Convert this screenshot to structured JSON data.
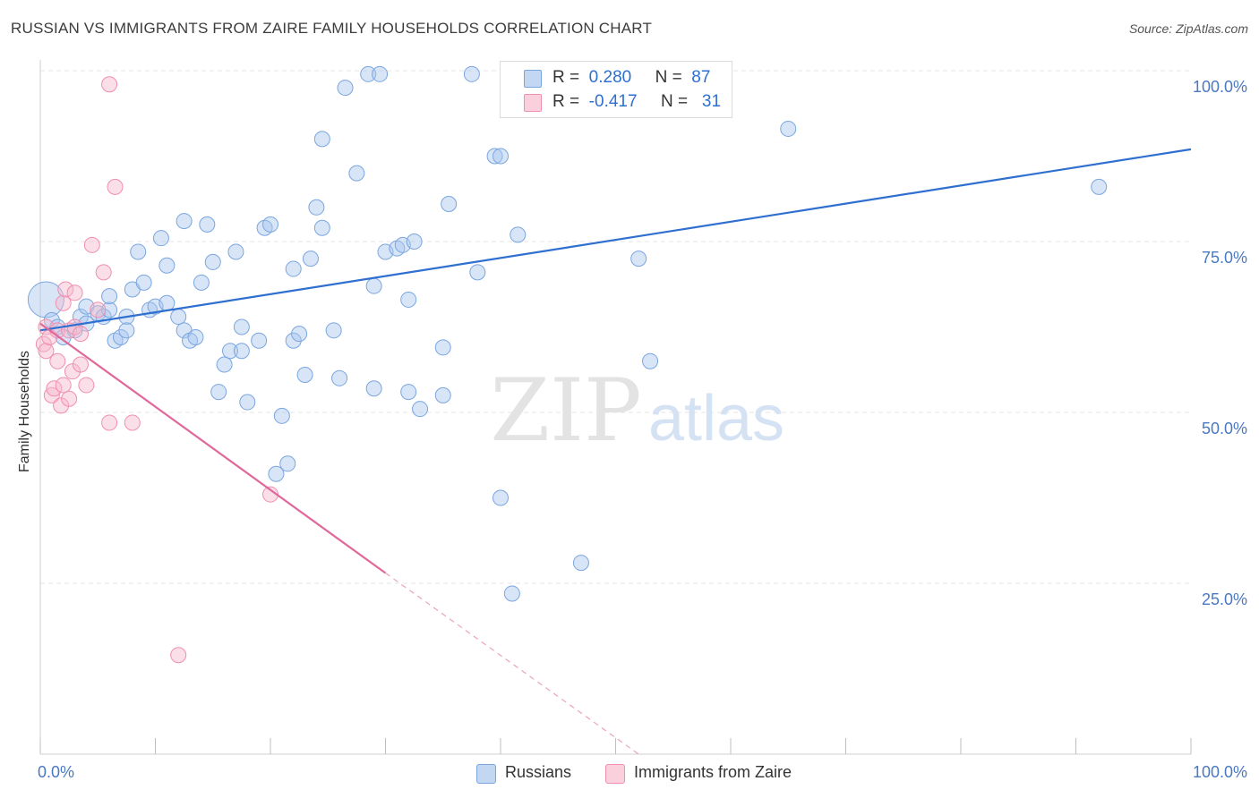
{
  "header": {
    "title": "RUSSIAN VS IMMIGRANTS FROM ZAIRE FAMILY HOUSEHOLDS CORRELATION CHART",
    "source": "Source: ZipAtlas.com"
  },
  "watermark": {
    "zip": "ZIP",
    "atlas": "atlas"
  },
  "stats": {
    "rows": [
      {
        "r_label": "R =",
        "r_value": "0.280",
        "n_label": "N =",
        "n_value": "87",
        "color": "#a9c6ee"
      },
      {
        "r_label": "R =",
        "r_value": "-0.417",
        "n_label": "N =",
        "n_value": "31",
        "color": "#f6b8cb"
      }
    ]
  },
  "chart_data": {
    "type": "scatter",
    "title": "RUSSIAN VS IMMIGRANTS FROM ZAIRE FAMILY HOUSEHOLDS CORRELATION CHART",
    "xlabel": "",
    "ylabel": "Family Households",
    "xlim": [
      0,
      100
    ],
    "ylim": [
      0,
      100
    ],
    "x_tick_labels": [
      {
        "value": 0,
        "label": "0.0%"
      },
      {
        "value": 100,
        "label": "100.0%"
      }
    ],
    "y_tick_labels": [
      {
        "value": 25,
        "label": "25.0%"
      },
      {
        "value": 50,
        "label": "50.0%"
      },
      {
        "value": 75,
        "label": "75.0%"
      },
      {
        "value": 100,
        "label": "100.0%"
      }
    ],
    "grid": true,
    "legend": "bottom",
    "series": [
      {
        "name": "Russians",
        "color": "#7aa6e0",
        "trend": {
          "x": [
            0,
            100
          ],
          "y": [
            62,
            88.5
          ]
        },
        "points": [
          [
            0.5,
            66.5
          ],
          [
            1,
            63.5
          ],
          [
            1.5,
            62.5
          ],
          [
            2,
            61
          ],
          [
            3,
            62
          ],
          [
            3.5,
            64
          ],
          [
            4,
            63
          ],
          [
            4,
            65.5
          ],
          [
            5,
            64.5
          ],
          [
            5.5,
            64
          ],
          [
            6,
            65
          ],
          [
            6,
            67
          ],
          [
            6.5,
            60.5
          ],
          [
            7,
            61
          ],
          [
            7.5,
            64
          ],
          [
            7.5,
            62
          ],
          [
            8,
            68
          ],
          [
            8.5,
            73.5
          ],
          [
            9,
            69
          ],
          [
            9.5,
            65
          ],
          [
            10,
            65.5
          ],
          [
            10.5,
            75.5
          ],
          [
            11,
            66
          ],
          [
            11,
            71.5
          ],
          [
            12,
            64
          ],
          [
            12.5,
            62
          ],
          [
            12.5,
            78
          ],
          [
            13,
            60.5
          ],
          [
            13.5,
            61
          ],
          [
            14,
            69
          ],
          [
            14.5,
            77.5
          ],
          [
            15,
            72
          ],
          [
            15.5,
            53
          ],
          [
            16,
            57
          ],
          [
            16.5,
            59
          ],
          [
            17,
            73.5
          ],
          [
            17.5,
            59
          ],
          [
            17.5,
            62.5
          ],
          [
            18,
            51.5
          ],
          [
            19,
            60.5
          ],
          [
            19.5,
            77
          ],
          [
            20,
            77.5
          ],
          [
            20.5,
            41
          ],
          [
            21,
            49.5
          ],
          [
            21.5,
            42.5
          ],
          [
            22,
            60.5
          ],
          [
            22,
            71
          ],
          [
            22.5,
            61.5
          ],
          [
            23,
            55.5
          ],
          [
            23.5,
            72.5
          ],
          [
            24,
            80
          ],
          [
            24.5,
            90
          ],
          [
            24.5,
            77
          ],
          [
            25.5,
            62
          ],
          [
            26,
            55
          ],
          [
            26.5,
            97.5
          ],
          [
            27.5,
            85
          ],
          [
            28.5,
            99.5
          ],
          [
            29,
            53.5
          ],
          [
            29,
            68.5
          ],
          [
            29.5,
            99.5
          ],
          [
            30,
            73.5
          ],
          [
            31,
            74
          ],
          [
            31.5,
            74.5
          ],
          [
            32,
            53
          ],
          [
            32,
            66.5
          ],
          [
            32.5,
            75
          ],
          [
            33,
            50.5
          ],
          [
            35,
            59.5
          ],
          [
            35,
            52.5
          ],
          [
            35.5,
            80.5
          ],
          [
            37.5,
            99.5
          ],
          [
            38,
            70.5
          ],
          [
            39.5,
            87.5
          ],
          [
            40,
            87.5
          ],
          [
            40,
            37.5
          ],
          [
            41,
            23.5
          ],
          [
            41.5,
            76
          ],
          [
            47,
            28
          ],
          [
            50,
            99.5
          ],
          [
            50.5,
            99
          ],
          [
            51,
            99
          ],
          [
            52,
            72.5
          ],
          [
            53,
            57.5
          ],
          [
            65,
            91.5
          ],
          [
            92,
            83
          ]
        ]
      },
      {
        "name": "Immigrants from Zaire",
        "color": "#f08fb0",
        "trend": {
          "x": [
            0,
            30
          ],
          "y": [
            63,
            26.5
          ]
        },
        "trend_dashed": {
          "x": [
            30,
            52
          ],
          "y": [
            26.5,
            0
          ]
        },
        "points": [
          [
            0.3,
            60
          ],
          [
            0.5,
            59
          ],
          [
            0.5,
            62.5
          ],
          [
            0.8,
            61
          ],
          [
            1,
            52.5
          ],
          [
            1.2,
            53.5
          ],
          [
            1.5,
            57.5
          ],
          [
            1.5,
            62
          ],
          [
            1.8,
            51
          ],
          [
            2,
            54
          ],
          [
            2,
            66
          ],
          [
            2.2,
            68
          ],
          [
            2.5,
            52
          ],
          [
            2.5,
            62
          ],
          [
            2.8,
            56
          ],
          [
            3,
            62.5
          ],
          [
            3,
            67.5
          ],
          [
            3.5,
            57
          ],
          [
            3.5,
            61.5
          ],
          [
            4,
            54
          ],
          [
            4.5,
            74.5
          ],
          [
            5,
            65
          ],
          [
            5.5,
            70.5
          ],
          [
            6,
            48.5
          ],
          [
            6,
            98
          ],
          [
            6.5,
            83
          ],
          [
            8,
            48.5
          ],
          [
            12,
            14.5
          ],
          [
            20,
            38
          ]
        ]
      }
    ]
  },
  "legend": {
    "items": [
      {
        "label": "Russians",
        "color": "#a9c6ee"
      },
      {
        "label": "Immigrants from Zaire",
        "color": "#f6b8cb"
      }
    ]
  }
}
